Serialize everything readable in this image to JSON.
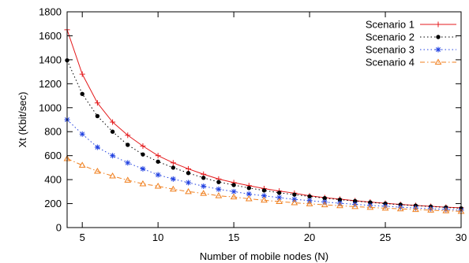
{
  "chart_data": {
    "type": "line",
    "xlabel": "Number of mobile nodes (N)",
    "ylabel": "Xt (Kbit/sec)",
    "xlim": [
      4,
      30
    ],
    "ylim": [
      0,
      1800
    ],
    "xticks": [
      5,
      10,
      15,
      20,
      25,
      30
    ],
    "yticks": [
      0,
      200,
      400,
      600,
      800,
      1000,
      1200,
      1400,
      1600,
      1800
    ],
    "grid": false,
    "legend_position": "top-right",
    "x": [
      4,
      5,
      6,
      7,
      8,
      9,
      10,
      11,
      12,
      13,
      14,
      15,
      16,
      17,
      18,
      19,
      20,
      21,
      22,
      23,
      24,
      25,
      26,
      27,
      28,
      29,
      30
    ],
    "series": [
      {
        "name": "Scenario 1",
        "color": "#e41a1c",
        "marker": "plus",
        "dash": "solid",
        "values": [
          1650,
          1280,
          1040,
          880,
          770,
          680,
          600,
          540,
          490,
          445,
          405,
          375,
          350,
          325,
          305,
          287,
          265,
          250,
          237,
          224,
          213,
          203,
          193,
          185,
          177,
          170,
          165
        ]
      },
      {
        "name": "Scenario 2",
        "color": "#000000",
        "marker": "circle",
        "dash": "dotted",
        "values": [
          1395,
          1115,
          930,
          800,
          690,
          610,
          550,
          500,
          455,
          415,
          380,
          355,
          330,
          310,
          290,
          275,
          260,
          245,
          233,
          221,
          210,
          200,
          191,
          183,
          175,
          168,
          160
        ]
      },
      {
        "name": "Scenario 3",
        "color": "#1f3fe0",
        "marker": "star",
        "dash": "dotted",
        "values": [
          900,
          780,
          670,
          600,
          540,
          490,
          440,
          405,
          375,
          345,
          320,
          300,
          280,
          265,
          250,
          235,
          225,
          213,
          203,
          194,
          185,
          178,
          170,
          163,
          157,
          151,
          145
        ]
      },
      {
        "name": "Scenario 4",
        "color": "#f07f1d",
        "marker": "triangle",
        "dash": "dashdot",
        "values": [
          575,
          520,
          470,
          430,
          395,
          365,
          345,
          320,
          300,
          285,
          265,
          255,
          240,
          228,
          217,
          207,
          198,
          190,
          182,
          175,
          168,
          162,
          156,
          150,
          145,
          140,
          135
        ]
      }
    ]
  }
}
